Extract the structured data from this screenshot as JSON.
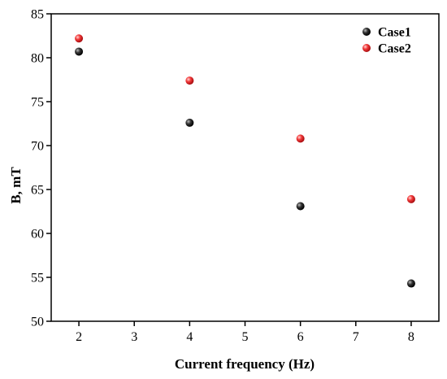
{
  "chart_data": {
    "type": "scatter",
    "xlabel": "Current frequency (Hz)",
    "ylabel": "B, mT",
    "xlim": [
      1.5,
      8.5
    ],
    "ylim": [
      50,
      85
    ],
    "xticks": [
      2,
      3,
      4,
      5,
      6,
      7,
      8
    ],
    "yticks": [
      50,
      55,
      60,
      65,
      70,
      75,
      80,
      85
    ],
    "grid": false,
    "legend_position": "top-right",
    "series": [
      {
        "name": "Case1",
        "color": "#000000",
        "x": [
          2,
          4,
          6,
          8
        ],
        "y": [
          80.7,
          72.6,
          63.1,
          54.3
        ]
      },
      {
        "name": "Case2",
        "color": "#e8191f",
        "x": [
          2,
          4,
          6,
          8
        ],
        "y": [
          82.2,
          77.4,
          70.8,
          63.9
        ]
      }
    ]
  }
}
